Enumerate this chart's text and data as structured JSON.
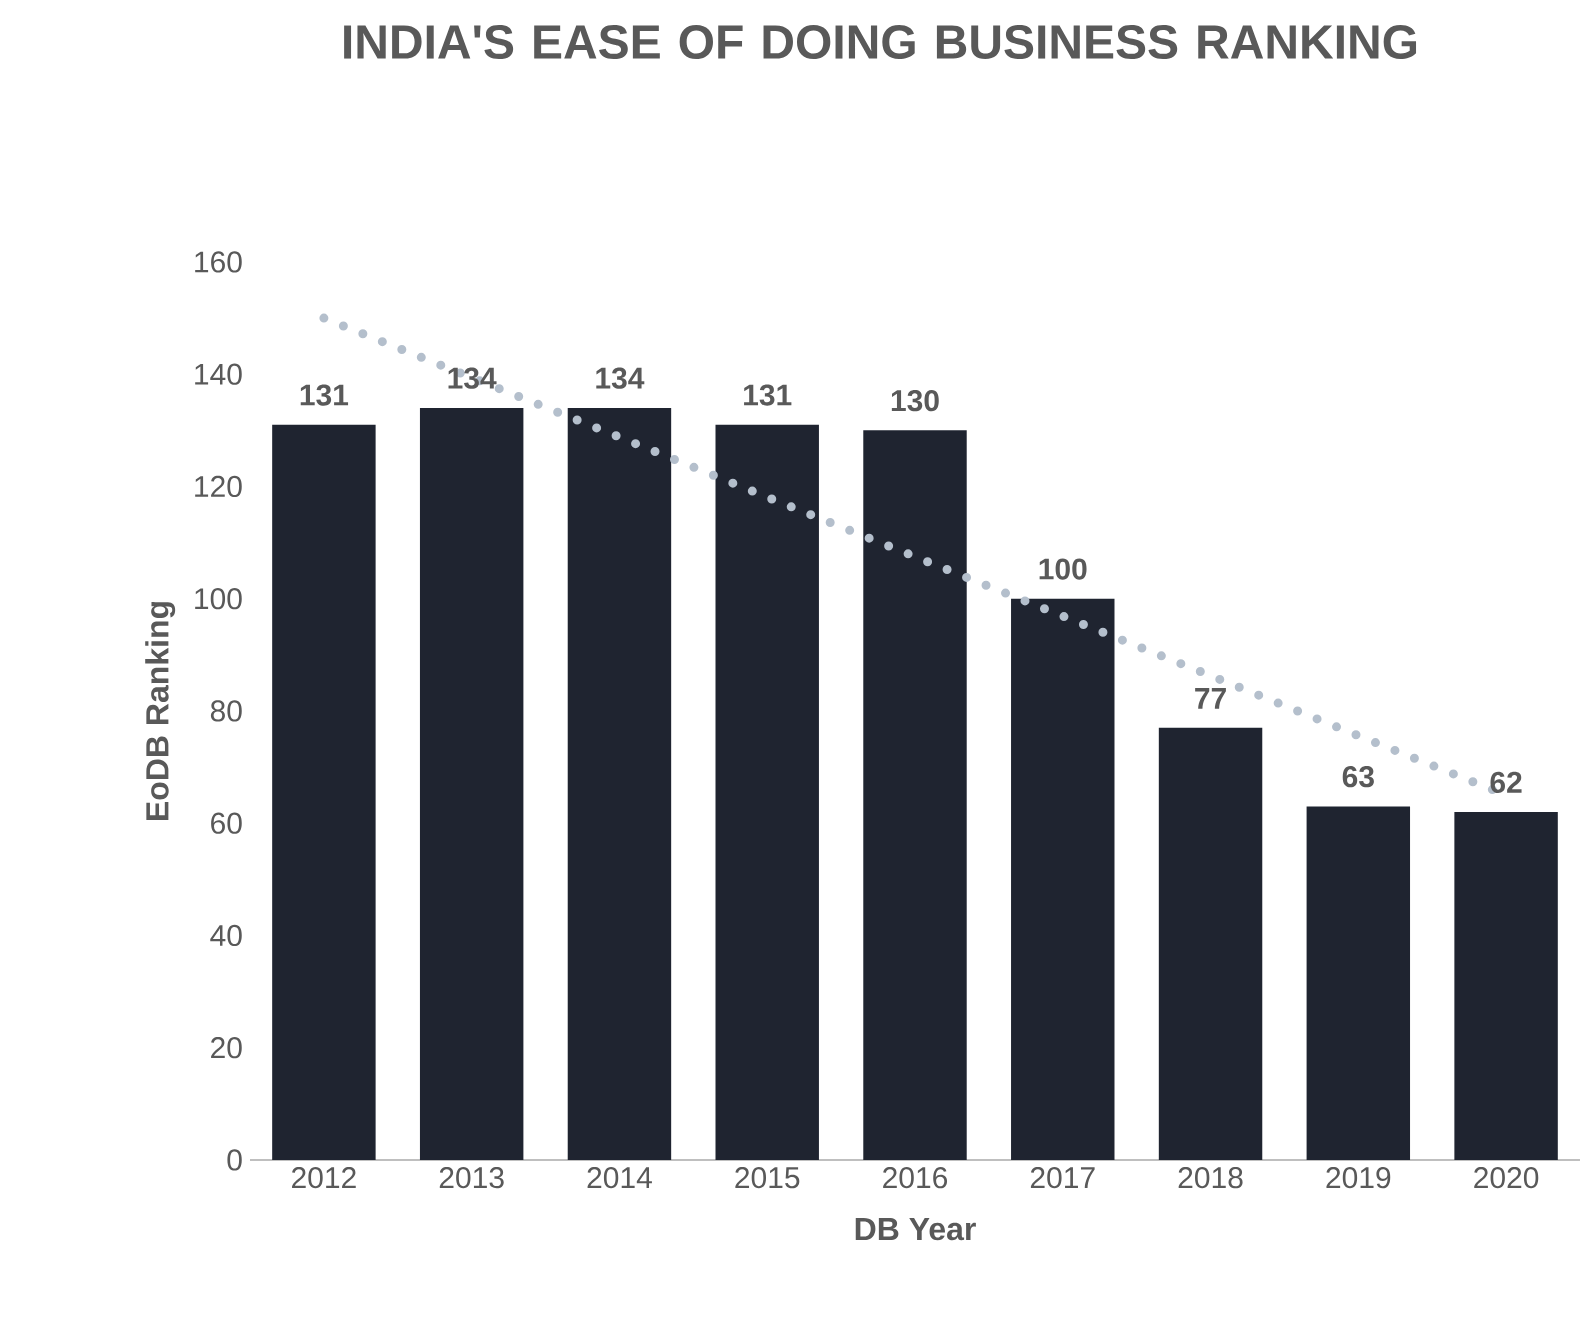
{
  "chart_data": {
    "type": "bar",
    "title": "INDIA'S EASE OF DOING BUSINESS RANKING",
    "xlabel": "DB Year",
    "ylabel": "EoDB Ranking",
    "categories": [
      "2012",
      "2013",
      "2014",
      "2015",
      "2016",
      "2017",
      "2018",
      "2019",
      "2020"
    ],
    "series": [
      {
        "color": "#1f2430",
        "values": [
          131,
          134,
          134,
          131,
          130,
          100,
          77,
          63,
          62
        ],
        "value_labels": [
          "131",
          "134",
          "134",
          "131",
          "130",
          "100",
          "77",
          "63",
          "62"
        ]
      },
      {
        "type": "line",
        "color": "#b4bfcc",
        "line_style": "dotted",
        "values": [
          150,
          139.4,
          128.8,
          118.1,
          107.5,
          96.9,
          86.3,
          75.6,
          65
        ]
      }
    ],
    "ylim": [
      0,
      160
    ],
    "yticks": [
      0,
      20,
      40,
      60,
      80,
      100,
      120,
      140,
      160
    ],
    "grid": false
  }
}
